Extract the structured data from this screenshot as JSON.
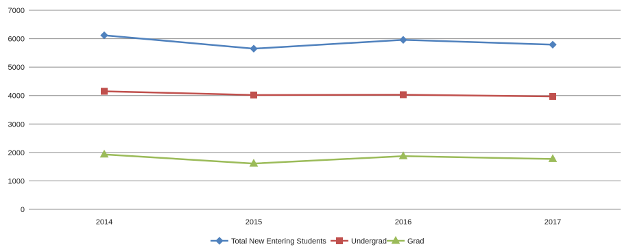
{
  "chart_data": {
    "type": "line",
    "title": "",
    "xlabel": "",
    "ylabel": "",
    "categories": [
      "2014",
      "2015",
      "2016",
      "2017"
    ],
    "ylim": [
      0,
      7000
    ],
    "yticks": [
      0,
      1000,
      2000,
      3000,
      4000,
      5000,
      6000,
      7000
    ],
    "grid": "horizontal",
    "legend_position": "bottom",
    "series": [
      {
        "name": "Total New Entering Students",
        "values": [
          6120,
          5650,
          5960,
          5790
        ],
        "color": "#4f81bd",
        "marker": "diamond"
      },
      {
        "name": "Undergrad",
        "values": [
          4150,
          4020,
          4030,
          3970
        ],
        "color": "#c0504d",
        "marker": "square"
      },
      {
        "name": "Grad",
        "values": [
          1930,
          1610,
          1870,
          1770
        ],
        "color": "#9bbb59",
        "marker": "triangle"
      }
    ]
  }
}
